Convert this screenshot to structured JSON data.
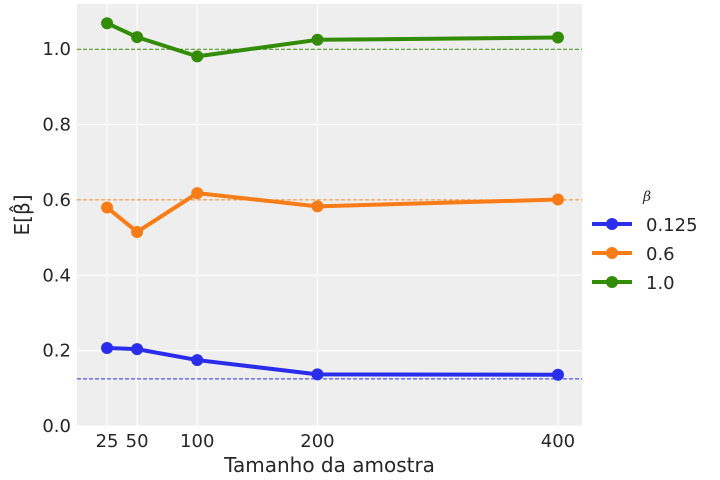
{
  "chart_data": {
    "type": "line",
    "xlabel": "Tamanho da amostra",
    "ylabel": "E[β̂]",
    "x": [
      25,
      50,
      100,
      200,
      400
    ],
    "x_ticks": [
      "25",
      "50",
      "100",
      "200",
      "400"
    ],
    "xlim": [
      0,
      420
    ],
    "ylim": [
      0,
      1.12
    ],
    "y_ticks": [
      "0.0",
      "0.2",
      "0.4",
      "0.6",
      "0.8",
      "1.0"
    ],
    "grid": true,
    "legend_title": "β",
    "legend_placement": "right",
    "series": [
      {
        "name": "0.125",
        "color": "#2a2eec",
        "reference": 0.125,
        "values": [
          0.207,
          0.204,
          0.175,
          0.137,
          0.136
        ]
      },
      {
        "name": "0.6",
        "color": "#fa7c17",
        "reference": 0.6,
        "values": [
          0.58,
          0.515,
          0.618,
          0.583,
          0.601
        ]
      },
      {
        "name": "1.0",
        "color": "#328c06",
        "reference": 1.0,
        "values": [
          1.069,
          1.032,
          0.981,
          1.025,
          1.031
        ]
      }
    ]
  }
}
